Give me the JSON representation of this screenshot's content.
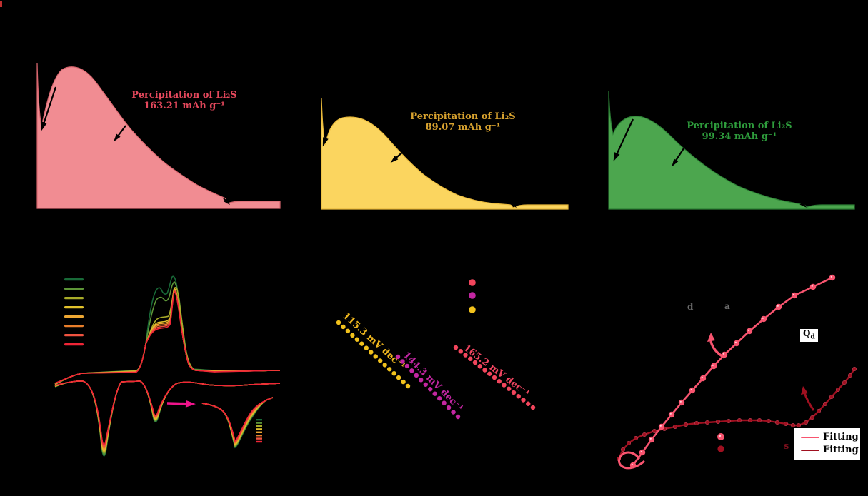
{
  "background": "#000000",
  "panel_a": {
    "annotation_line1": "Percipitation of Li₂S",
    "annotation_line2": "163.21 mAh g⁻¹",
    "fill_color": "#F18C92",
    "edge_color": "#D9666F",
    "text_color": "#E4485C"
  },
  "panel_b": {
    "annotation_line1": "Percipitation of Li₂S",
    "annotation_line2": "89.07 mAh g⁻¹",
    "fill_color": "#FBD55F",
    "edge_color": "#E9B93B",
    "text_color": "#D9A32F"
  },
  "panel_c": {
    "annotation_line1": "Percipitation of Li₂S",
    "annotation_line2": "99.34 mAh g⁻¹",
    "fill_color": "#4CA64E",
    "edge_color": "#2C7F35",
    "text_color": "#2E9C3C"
  },
  "panel_d": {
    "curve_colors": [
      "#186A38",
      "#5E9638",
      "#A8AC28",
      "#E2C22C",
      "#EDA733",
      "#E87E2B",
      "#EF5340",
      "#F02536"
    ],
    "inset_arrow_color": "#F0148C"
  },
  "panel_e": {
    "labels": [
      "115.3 mV dec⁻¹",
      "144.3 mV dec⁻¹",
      "165.2 mV dec⁻¹"
    ],
    "line_colors": [
      "#F2C21C",
      "#C326A2",
      "#F2455C"
    ],
    "label_colors": [
      "#EDB51E",
      "#C326A2",
      "#EF4560"
    ],
    "legend_marker_colors": [
      "#F2455C",
      "#C326A2",
      "#F2C21C"
    ]
  },
  "panel_f": {
    "pink_color": "#F8546F",
    "dark_red_color": "#A01020",
    "qd_main": "Q",
    "qd_sub": "d",
    "glyph_d": "d",
    "glyph_a": "a",
    "glyph_s": "s",
    "legend": [
      {
        "color": "#F8546F",
        "label": "Fitting"
      },
      {
        "color": "#A01020",
        "label": "Fitting"
      }
    ]
  },
  "chart_data": [
    {
      "panel": "a",
      "type": "area",
      "series_color": "#F18C92",
      "annotation": [
        "Percipitation of Li₂S",
        "163.21 mAh g⁻¹"
      ],
      "precipitation_capacity_value": 163.21,
      "unit": "mAh g⁻¹",
      "shape": "current spike then broad peak decaying to flat plateau, 3 black arrows"
    },
    {
      "panel": "b",
      "type": "area",
      "series_color": "#FBD55F",
      "annotation": [
        "Percipitation of Li₂S",
        "89.07 mAh g⁻¹"
      ],
      "precipitation_capacity_value": 89.07,
      "unit": "mAh g⁻¹",
      "shape": "current spike then broad peak decaying to flat plateau, 3 black arrows"
    },
    {
      "panel": "c",
      "type": "area",
      "series_color": "#4CA64E",
      "annotation": [
        "Percipitation of Li₂S",
        "99.34 mAh g⁻¹"
      ],
      "precipitation_capacity_value": 99.34,
      "unit": "mAh g⁻¹",
      "shape": "current spike then broad peak decaying to flat plateau, 3 black arrows"
    },
    {
      "panel": "d",
      "type": "line",
      "subtype": "cyclic-voltammetry",
      "series_count": 8,
      "series_colors": [
        "#186A38",
        "#5E9638",
        "#A8AC28",
        "#E2C22C",
        "#EDA733",
        "#E87E2B",
        "#EF5340",
        "#F02536"
      ],
      "features": "two cathodic dips, double anodic peak, magenta arrow to magnified inset of second cathodic peak, 8-entry color legend (labels not legible)"
    },
    {
      "panel": "e",
      "type": "scatter",
      "subtype": "tafel",
      "series": [
        {
          "color": "#F2C21C",
          "slope_label": "115.3 mV dec⁻¹",
          "slope_mV_per_dec": 115.3
        },
        {
          "color": "#C326A2",
          "slope_label": "144.3 mV dec⁻¹",
          "slope_mV_per_dec": 144.3
        },
        {
          "color": "#F2455C",
          "slope_label": "165.2 mV dec⁻¹",
          "slope_mV_per_dec": 165.2
        }
      ],
      "legend_marker_colors": [
        "#F2455C",
        "#C326A2",
        "#F2C21C"
      ]
    },
    {
      "panel": "f",
      "type": "line+scatter",
      "series": [
        {
          "color": "#F8546F",
          "marker": "circle",
          "legend_label": "Fitting",
          "shape": "steep nearly straight rising line with small loop at start"
        },
        {
          "color": "#A01020",
          "marker": "circle",
          "legend_label": "Fitting",
          "shape": "S-shaped rising curve"
        }
      ],
      "annotations": [
        "Qd"
      ],
      "extra_glyphs": [
        "d",
        "a",
        "s"
      ]
    }
  ]
}
